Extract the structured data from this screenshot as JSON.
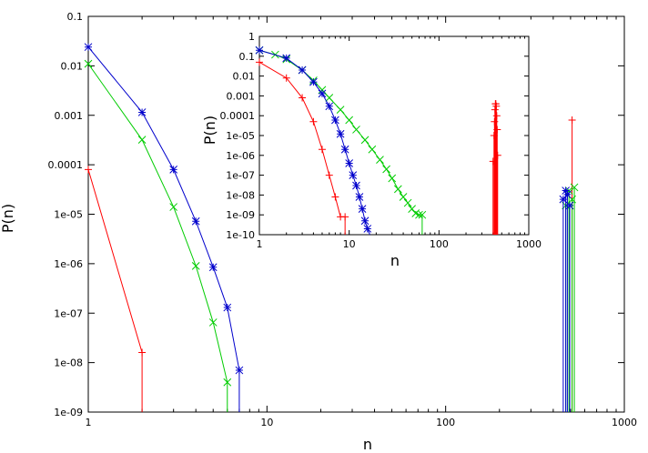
{
  "chart_data": [
    {
      "type": "line",
      "panel": "main",
      "title": "",
      "xlabel": "n",
      "ylabel": "P(n)",
      "xscale": "log",
      "yscale": "log",
      "xlim": [
        1,
        1000
      ],
      "ylim": [
        1e-09,
        0.1
      ],
      "xticks": [
        {
          "v": 1,
          "label": "1"
        },
        {
          "v": 10,
          "label": "10"
        },
        {
          "v": 100,
          "label": "100"
        },
        {
          "v": 1000,
          "label": "1000"
        }
      ],
      "yticks": [
        {
          "v": 0.1,
          "label": "0.1"
        },
        {
          "v": 0.01,
          "label": "0.01"
        },
        {
          "v": 0.001,
          "label": "0.001"
        },
        {
          "v": 0.0001,
          "label": "0.0001"
        },
        {
          "v": 1e-05,
          "label": "1e-05"
        },
        {
          "v": 1e-06,
          "label": "1e-06"
        },
        {
          "v": 1e-07,
          "label": "1e-07"
        },
        {
          "v": 1e-08,
          "label": "1e-08"
        },
        {
          "v": 1e-09,
          "label": "1e-09"
        }
      ],
      "grid": false,
      "legend": "none",
      "series": [
        {
          "color": "#ff0000",
          "marker": "plus",
          "x": [
            1,
            2,
            2
          ],
          "y": [
            8e-05,
            1.6e-08,
            1e-09
          ],
          "spikes": [
            {
              "x": 510,
              "y": 0.0008
            }
          ]
        },
        {
          "color": "#00cc00",
          "marker": "x",
          "x": [
            1,
            2,
            3,
            4,
            5,
            6,
            6
          ],
          "y": [
            0.011,
            0.00032,
            1.4e-05,
            9e-07,
            6.5e-08,
            4e-09,
            1e-09
          ],
          "spikes": [
            {
              "x": 470,
              "y": 1.5e-05
            },
            {
              "x": 490,
              "y": 3e-05
            },
            {
              "x": 510,
              "y": 2e-05
            },
            {
              "x": 525,
              "y": 3.5e-05
            }
          ]
        },
        {
          "color": "#0000cc",
          "marker": "star",
          "x": [
            1,
            2,
            3,
            4,
            5,
            6,
            7,
            7
          ],
          "y": [
            0.024,
            0.00115,
            8e-05,
            7.2e-06,
            8.5e-07,
            1.3e-07,
            7e-09,
            1e-09
          ],
          "spikes": [
            {
              "x": 455,
              "y": 2e-05
            },
            {
              "x": 470,
              "y": 3e-05
            },
            {
              "x": 480,
              "y": 2.5e-05
            },
            {
              "x": 495,
              "y": 1.5e-05
            }
          ]
        }
      ]
    },
    {
      "type": "line",
      "panel": "inset",
      "title": "",
      "xlabel": "n",
      "ylabel": "P(n)",
      "xscale": "log",
      "yscale": "log",
      "xlim": [
        1,
        1000
      ],
      "ylim": [
        1e-10,
        1
      ],
      "xticks": [
        {
          "v": 1,
          "label": "1"
        },
        {
          "v": 10,
          "label": "10"
        },
        {
          "v": 100,
          "label": "100"
        },
        {
          "v": 1000,
          "label": "1000"
        }
      ],
      "yticks": [
        {
          "v": 1,
          "label": "1"
        },
        {
          "v": 0.1,
          "label": "0.1"
        },
        {
          "v": 0.01,
          "label": "0.01"
        },
        {
          "v": 0.001,
          "label": "0.001"
        },
        {
          "v": 0.0001,
          "label": "0.0001"
        },
        {
          "v": 1e-05,
          "label": "1e-05"
        },
        {
          "v": 1e-06,
          "label": "1e-06"
        },
        {
          "v": 1e-07,
          "label": "1e-07"
        },
        {
          "v": 1e-08,
          "label": "1e-08"
        },
        {
          "v": 1e-09,
          "label": "1e-09"
        },
        {
          "v": 1e-10,
          "label": "1e-10"
        }
      ],
      "grid": false,
      "legend": "none",
      "series": [
        {
          "color": "#ff0000",
          "marker": "plus",
          "x": [
            1,
            2,
            3,
            4,
            5,
            6,
            7,
            8,
            9,
            9
          ],
          "y": [
            0.05,
            0.008,
            0.0008,
            5e-05,
            2e-06,
            1e-07,
            8e-09,
            8e-10,
            8e-10,
            1e-10
          ],
          "spikes": [
            {
              "x": 400,
              "y": 5e-07
            },
            {
              "x": 410,
              "y": 1e-05
            },
            {
              "x": 415,
              "y": 5e-05
            },
            {
              "x": 420,
              "y": 0.0002
            },
            {
              "x": 425,
              "y": 0.0004
            },
            {
              "x": 430,
              "y": 0.0004
            },
            {
              "x": 435,
              "y": 0.0003
            },
            {
              "x": 440,
              "y": 0.0001
            },
            {
              "x": 445,
              "y": 2e-05
            },
            {
              "x": 450,
              "y": 1e-06
            }
          ]
        },
        {
          "color": "#00cc00",
          "marker": "x",
          "x": [
            1,
            1.5,
            2,
            3,
            4,
            5,
            6,
            8,
            10,
            12,
            15,
            18,
            22,
            26,
            30,
            35,
            40,
            45,
            50,
            55,
            60,
            65,
            65
          ],
          "y": [
            0.2,
            0.12,
            0.07,
            0.02,
            0.006,
            0.002,
            0.0008,
            0.0002,
            6e-05,
            2e-05,
            6e-06,
            2e-06,
            6e-07,
            2e-07,
            7e-08,
            2e-08,
            8e-09,
            4e-09,
            2e-09,
            1.2e-09,
            1e-09,
            1e-09,
            1e-10
          ],
          "spikes": []
        },
        {
          "color": "#0000cc",
          "marker": "star",
          "x": [
            1,
            2,
            3,
            4,
            5,
            6,
            7,
            8,
            9,
            10,
            11,
            12,
            13,
            14,
            15,
            16,
            17,
            17
          ],
          "y": [
            0.2,
            0.08,
            0.02,
            0.005,
            0.0013,
            0.0003,
            6e-05,
            1.2e-05,
            2e-06,
            4e-07,
            1e-07,
            3e-08,
            8e-09,
            2e-09,
            5e-10,
            2e-10,
            1e-10,
            1e-10
          ],
          "spikes": []
        }
      ]
    }
  ]
}
